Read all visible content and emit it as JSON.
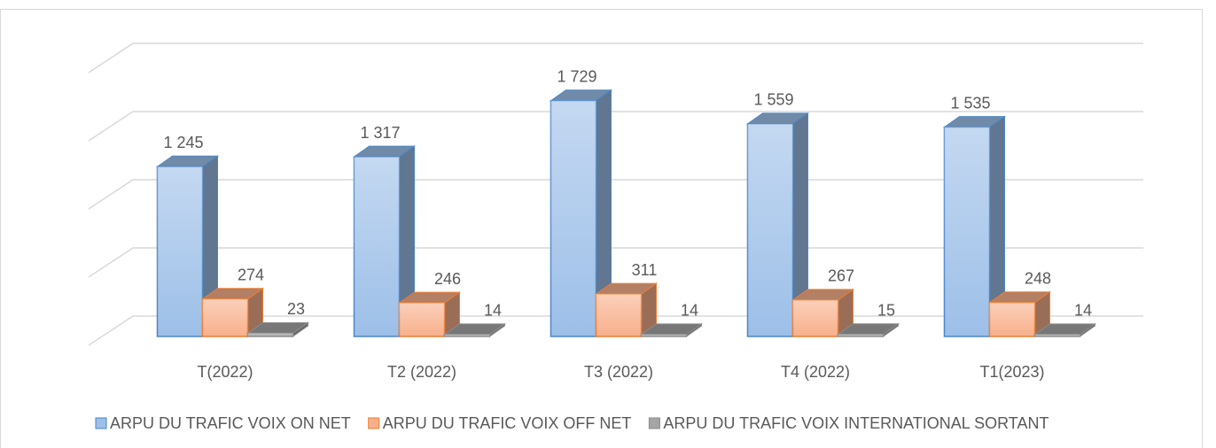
{
  "chart_data": {
    "type": "bar3d",
    "categories": [
      "T(2022)",
      "T2 (2022)",
      "T3 (2022)",
      "T4 (2022)",
      "T1(2023)"
    ],
    "series": [
      {
        "name": "ARPU DU TRAFIC VOIX ON NET",
        "color": "#9dbfe8",
        "values": [
          1245,
          1317,
          1729,
          1559,
          1535
        ],
        "value_labels": [
          "1 245",
          "1 317",
          "1 729",
          "1 559",
          "1 535"
        ]
      },
      {
        "name": "ARPU DU TRAFIC VOIX OFF NET",
        "color": "#f8b08c",
        "values": [
          274,
          246,
          311,
          267,
          248
        ]
      },
      {
        "name": "ARPU DU TRAFIC VOIX INTERNATIONAL SORTANT",
        "color": "#a5a5a5",
        "values": [
          23,
          14,
          14,
          15,
          14
        ]
      }
    ],
    "ylim": [
      0,
      2000
    ],
    "yticks": [
      0,
      500,
      1000,
      1500,
      2000
    ],
    "grid": true,
    "legend": "bottom"
  }
}
